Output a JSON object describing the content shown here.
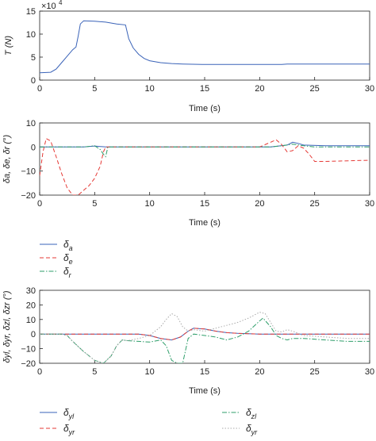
{
  "chart_data": [
    {
      "type": "line",
      "ylabel": "T (N)",
      "xlabel": "Time (s)",
      "yscale_label": "×10",
      "yscale_exp": "4",
      "xlim": [
        0,
        30
      ],
      "ylim": [
        0,
        15
      ],
      "xticks": [
        "0",
        "5",
        "10",
        "15",
        "20",
        "25",
        "30"
      ],
      "yticks": [
        "0",
        "5",
        "10",
        "15"
      ],
      "series": [
        {
          "color": "#3a63b8",
          "dash": "",
          "points": [
            [
              0,
              1.6
            ],
            [
              1.0,
              1.7
            ],
            [
              1.5,
              2.4
            ],
            [
              2.0,
              3.8
            ],
            [
              2.5,
              5.2
            ],
            [
              3.0,
              6.6
            ],
            [
              3.3,
              7.2
            ],
            [
              3.5,
              9.5
            ],
            [
              3.7,
              12.2
            ],
            [
              4.0,
              12.9
            ],
            [
              5.0,
              12.8
            ],
            [
              6.0,
              12.6
            ],
            [
              7.0,
              12.2
            ],
            [
              7.8,
              12.0
            ],
            [
              8.1,
              9.0
            ],
            [
              8.5,
              7.0
            ],
            [
              9.0,
              5.6
            ],
            [
              9.5,
              4.7
            ],
            [
              10.0,
              4.2
            ],
            [
              11.0,
              3.8
            ],
            [
              12.0,
              3.6
            ],
            [
              13.0,
              3.5
            ],
            [
              15.0,
              3.4
            ],
            [
              20.0,
              3.4
            ],
            [
              22.0,
              3.4
            ],
            [
              22.5,
              3.5
            ],
            [
              30.0,
              3.5
            ]
          ]
        }
      ]
    },
    {
      "type": "line",
      "ylabel": "δa, δe, δr (°)",
      "xlabel": "Time (s)",
      "xlim": [
        0,
        30
      ],
      "ylim": [
        -20,
        10
      ],
      "xticks": [
        "0",
        "5",
        "10",
        "15",
        "20",
        "25",
        "30"
      ],
      "yticks": [
        "−20",
        "−10",
        "0",
        "10"
      ],
      "legend": [
        "δa",
        "δe",
        "δr"
      ],
      "series": [
        {
          "name": "δa",
          "color": "#3a63b8",
          "dash": "",
          "points": [
            [
              0,
              0
            ],
            [
              4,
              0
            ],
            [
              5,
              0.4
            ],
            [
              5.5,
              0.2
            ],
            [
              6,
              0
            ],
            [
              21,
              0
            ],
            [
              22.5,
              0.8
            ],
            [
              23,
              2.0
            ],
            [
              23.5,
              1.5
            ],
            [
              24,
              0.8
            ],
            [
              26,
              0.5
            ],
            [
              30,
              0.5
            ]
          ]
        },
        {
          "name": "δe",
          "color": "#e53935",
          "dash": "5,3",
          "points": [
            [
              0,
              -12
            ],
            [
              0.3,
              -2
            ],
            [
              0.6,
              3.5
            ],
            [
              1.0,
              2.5
            ],
            [
              1.5,
              -4
            ],
            [
              2.0,
              -11
            ],
            [
              2.5,
              -17
            ],
            [
              3.0,
              -20
            ],
            [
              3.5,
              -20
            ],
            [
              4.0,
              -18
            ],
            [
              4.5,
              -16
            ],
            [
              5.0,
              -13
            ],
            [
              5.5,
              -8
            ],
            [
              5.8,
              -2
            ],
            [
              6.0,
              0
            ],
            [
              20,
              0
            ],
            [
              21,
              2
            ],
            [
              21.5,
              3
            ],
            [
              22,
              1
            ],
            [
              22.5,
              -2
            ],
            [
              23,
              -1.5
            ],
            [
              23.5,
              0.5
            ],
            [
              24,
              -0.5
            ],
            [
              24.5,
              -3
            ],
            [
              25,
              -6
            ],
            [
              26,
              -6
            ],
            [
              30,
              -5.5
            ]
          ]
        },
        {
          "name": "δr",
          "color": "#2e9e6a",
          "dash": "6,2,1.5,2",
          "points": [
            [
              0,
              0
            ],
            [
              4,
              0
            ],
            [
              5,
              0.5
            ],
            [
              5.5,
              -1
            ],
            [
              5.8,
              -3
            ],
            [
              6.0,
              -4
            ],
            [
              6.2,
              0
            ],
            [
              21,
              0
            ],
            [
              22,
              0.5
            ],
            [
              23,
              1.2
            ],
            [
              24,
              0.5
            ],
            [
              25,
              0
            ],
            [
              30,
              0
            ]
          ]
        }
      ]
    },
    {
      "type": "line",
      "ylabel": "δyl, δyr, δzl, δzr (°)",
      "xlabel": "Time (s)",
      "xlim": [
        0,
        30
      ],
      "ylim": [
        -20,
        30
      ],
      "xticks": [
        "0",
        "5",
        "10",
        "15",
        "20",
        "25",
        "30"
      ],
      "yticks": [
        "−20",
        "−10",
        "0",
        "10",
        "20",
        "30"
      ],
      "legend": [
        "δyl",
        "δyr",
        "δzl",
        "δyr"
      ],
      "series": [
        {
          "name": "δyl",
          "color": "#3a63b8",
          "dash": "",
          "points": [
            [
              0,
              0
            ],
            [
              9,
              0
            ],
            [
              10,
              -1
            ],
            [
              11,
              -3
            ],
            [
              12,
              -4
            ],
            [
              12.8,
              -2
            ],
            [
              13.5,
              2
            ],
            [
              14,
              4
            ],
            [
              15,
              3.5
            ],
            [
              16,
              2
            ],
            [
              17,
              1
            ],
            [
              18,
              0.5
            ],
            [
              19,
              0.2
            ],
            [
              20,
              0
            ],
            [
              30,
              0
            ]
          ]
        },
        {
          "name": "δyr",
          "color": "#e53935",
          "dash": "5,3",
          "points": [
            [
              0,
              0
            ],
            [
              9,
              0
            ],
            [
              10,
              -1
            ],
            [
              11,
              -3
            ],
            [
              12,
              -4
            ],
            [
              12.8,
              -2
            ],
            [
              13.5,
              2
            ],
            [
              14,
              4
            ],
            [
              15,
              3.5
            ],
            [
              16,
              2
            ],
            [
              17,
              1
            ],
            [
              18,
              0.5
            ],
            [
              19,
              0.2
            ],
            [
              20,
              0
            ],
            [
              30,
              0
            ]
          ]
        },
        {
          "name": "δzl",
          "color": "#2e9e6a",
          "dash": "6,2,1.5,2",
          "points": [
            [
              0,
              0
            ],
            [
              2,
              0
            ],
            [
              2.5,
              -1
            ],
            [
              3,
              -5
            ],
            [
              4,
              -12
            ],
            [
              5,
              -18
            ],
            [
              5.8,
              -20
            ],
            [
              6.5,
              -15
            ],
            [
              7,
              -8
            ],
            [
              7.5,
              -4
            ],
            [
              8,
              -4.5
            ],
            [
              9,
              -5
            ],
            [
              10,
              -5.5
            ],
            [
              11,
              -4
            ],
            [
              11.5,
              -8
            ],
            [
              12,
              -18
            ],
            [
              12.5,
              -20
            ],
            [
              13,
              -20
            ],
            [
              13.5,
              -3
            ],
            [
              14,
              0
            ],
            [
              15,
              -1
            ],
            [
              16,
              -2
            ],
            [
              17,
              -4
            ],
            [
              18,
              -2
            ],
            [
              19,
              2
            ],
            [
              20,
              9
            ],
            [
              20.3,
              11
            ],
            [
              21,
              5
            ],
            [
              21.5,
              -1
            ],
            [
              22,
              -3
            ],
            [
              22.5,
              -4
            ],
            [
              23,
              -3
            ],
            [
              24,
              -3
            ],
            [
              26,
              -4
            ],
            [
              28,
              -5
            ],
            [
              30,
              -5
            ]
          ]
        },
        {
          "name": "δyr",
          "color": "#aaaaaa",
          "dash": "1.5,2",
          "points": [
            [
              0,
              0
            ],
            [
              2,
              0
            ],
            [
              2.5,
              -1
            ],
            [
              3,
              -5
            ],
            [
              4,
              -12
            ],
            [
              5,
              -18
            ],
            [
              5.8,
              -20
            ],
            [
              6.5,
              -15
            ],
            [
              7,
              -8
            ],
            [
              7.5,
              -4
            ],
            [
              8,
              -4.5
            ],
            [
              9,
              -3
            ],
            [
              10,
              -1
            ],
            [
              11,
              5
            ],
            [
              11.5,
              10
            ],
            [
              12,
              14
            ],
            [
              12.5,
              12
            ],
            [
              13,
              5
            ],
            [
              13.5,
              2
            ],
            [
              14,
              3
            ],
            [
              15,
              2
            ],
            [
              16,
              4
            ],
            [
              17,
              6
            ],
            [
              18,
              8
            ],
            [
              19,
              11
            ],
            [
              20,
              15
            ],
            [
              20.5,
              14
            ],
            [
              21,
              8
            ],
            [
              21.5,
              2
            ],
            [
              22,
              1.5
            ],
            [
              22.5,
              3
            ],
            [
              23,
              2
            ],
            [
              24,
              -1
            ],
            [
              26,
              -2
            ],
            [
              28,
              -3
            ],
            [
              30,
              -3
            ]
          ]
        }
      ]
    }
  ]
}
